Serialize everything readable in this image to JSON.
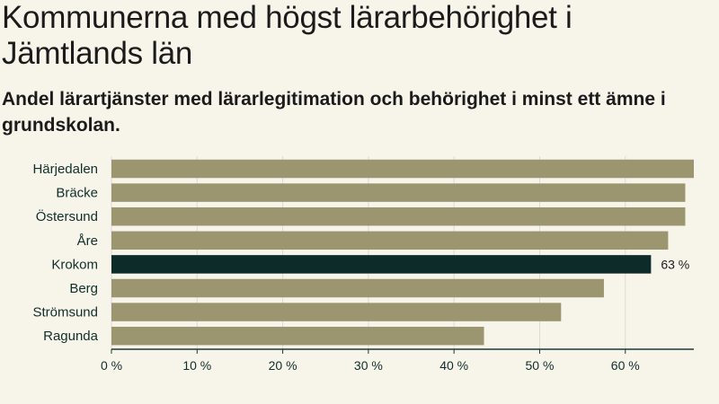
{
  "title": "Kommunerna med högst lärarbehörighet i Jämtlands län",
  "subtitle": "Andel lärartjänster med lärarlegitimation och behörighet i minst ett ämne i grundskolan.",
  "colors": {
    "bar": "#9c9670",
    "highlight": "#0d2b28",
    "grid": "#dcdbd2",
    "axis": "#1b3a35"
  },
  "chart_data": {
    "type": "bar",
    "orientation": "horizontal",
    "title": "Kommunerna med högst lärarbehörighet i Jämtlands län",
    "xlabel": "",
    "ylabel": "",
    "categories": [
      "Härjedalen",
      "Bräcke",
      "Östersund",
      "Åre",
      "Krokom",
      "Berg",
      "Strömsund",
      "Ragunda"
    ],
    "values": [
      68,
      67,
      67,
      65,
      63,
      57.5,
      52.5,
      43.5
    ],
    "unit": "%",
    "highlight": "Krokom",
    "data_labels": [
      {
        "category": "Krokom",
        "text": "63 %"
      }
    ],
    "xlim": [
      0,
      68
    ],
    "xticks": [
      0,
      10,
      20,
      30,
      40,
      50,
      60
    ],
    "tick_labels": [
      "0 %",
      "10 %",
      "20 %",
      "30 %",
      "40 %",
      "50 %",
      "60 %"
    ],
    "grid": true
  }
}
